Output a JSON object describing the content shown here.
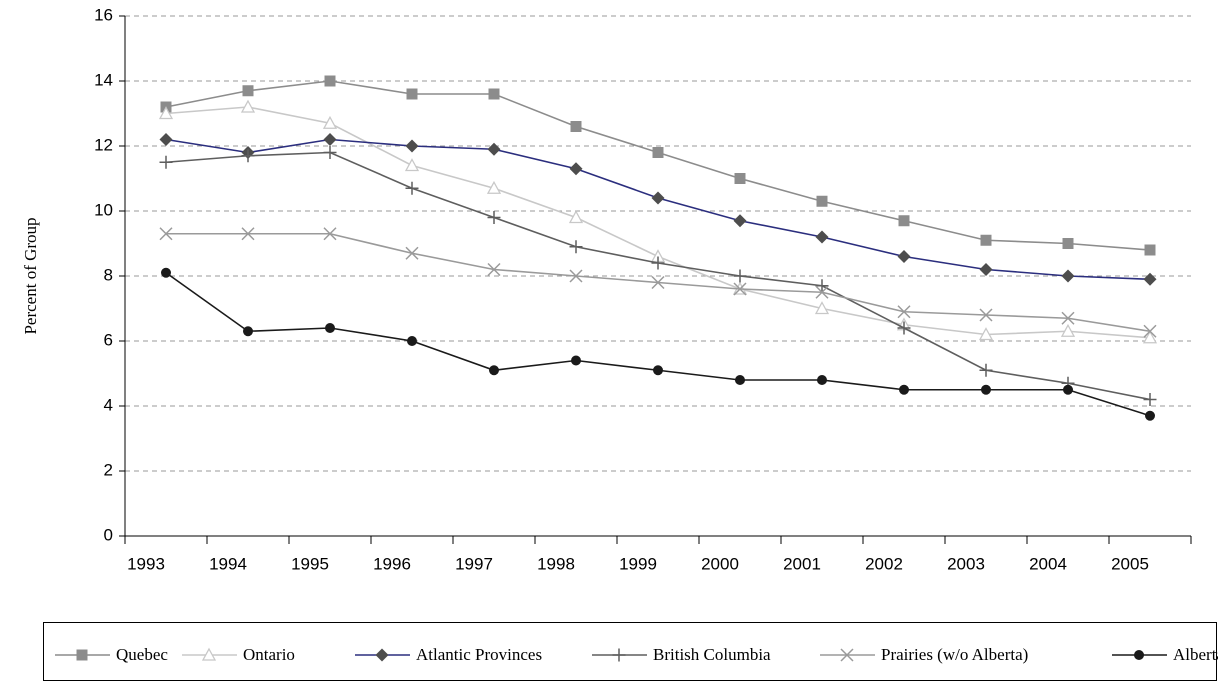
{
  "chart_data": {
    "type": "line",
    "y_label": "Percent of Group",
    "categories": [
      "1993",
      "1994",
      "1995",
      "1996",
      "1997",
      "1998",
      "1999",
      "2000",
      "2001",
      "2002",
      "2003",
      "2004",
      "2005"
    ],
    "ylim": [
      0,
      16
    ],
    "yticks": [
      0,
      2,
      4,
      6,
      8,
      10,
      12,
      14,
      16
    ],
    "grid": true,
    "series": [
      {
        "name": "Quebec",
        "color": "#8c8c8c",
        "marker": "square",
        "marker_color": "#8c8c8c",
        "values": [
          13.2,
          13.7,
          14.0,
          13.6,
          13.6,
          12.6,
          11.8,
          11.0,
          10.3,
          9.7,
          9.1,
          9.0,
          8.8
        ]
      },
      {
        "name": "Ontario",
        "color": "#c8c8c8",
        "marker": "triangle",
        "marker_color": "#c8c8c8",
        "values": [
          13.0,
          13.2,
          12.7,
          11.4,
          10.7,
          9.8,
          8.6,
          7.6,
          7.0,
          6.5,
          6.2,
          6.3,
          6.1
        ]
      },
      {
        "name": "Atlantic Provinces",
        "color": "#2b2e7e",
        "marker": "diamond",
        "marker_color": "#4d4d4d",
        "values": [
          12.2,
          11.8,
          12.2,
          12.0,
          11.9,
          11.3,
          10.4,
          9.7,
          9.2,
          8.6,
          8.2,
          8.0,
          7.9
        ]
      },
      {
        "name": "British Columbia",
        "color": "#5e5e5e",
        "marker": "plus",
        "marker_color": "#5e5e5e",
        "values": [
          11.5,
          11.7,
          11.8,
          10.7,
          9.8,
          8.9,
          8.4,
          8.0,
          7.7,
          6.4,
          5.1,
          4.7,
          4.2
        ]
      },
      {
        "name": "Prairies (w/o Alberta)",
        "color": "#9a9a9a",
        "marker": "cross",
        "marker_color": "#9a9a9a",
        "values": [
          9.3,
          9.3,
          9.3,
          8.7,
          8.2,
          8.0,
          7.8,
          7.6,
          7.5,
          6.9,
          6.8,
          6.7,
          6.3
        ]
      },
      {
        "name": "Alberta",
        "color": "#1a1a1a",
        "marker": "circle",
        "marker_color": "#1a1a1a",
        "values": [
          8.1,
          6.3,
          6.4,
          6.0,
          5.1,
          5.4,
          5.1,
          4.8,
          4.8,
          4.5,
          4.5,
          4.5,
          3.7
        ]
      }
    ]
  }
}
